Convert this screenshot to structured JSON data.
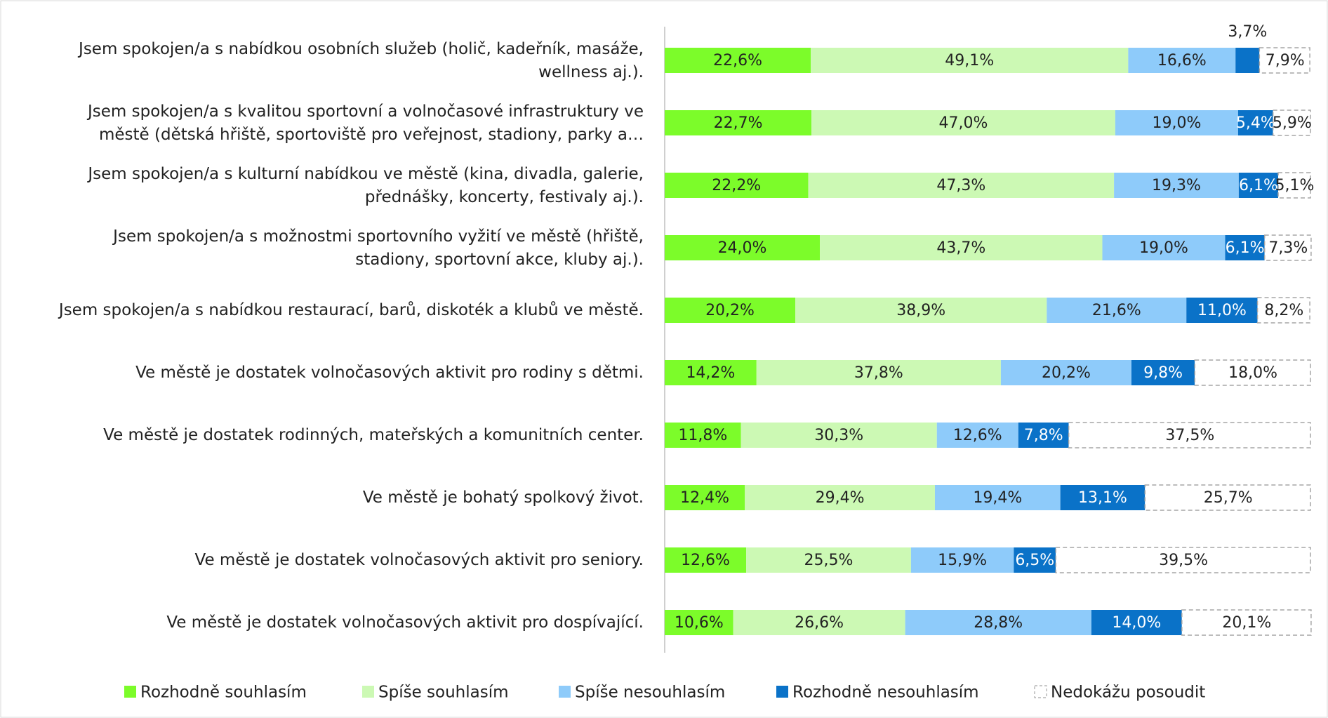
{
  "chart_data": {
    "type": "stacked_barh",
    "categories": [
      "Jsem spokojen/a s nabídkou osobních služeb (holič, kadeřník, masáže,\nwellness aj.).",
      "Jsem spokojen/a s kvalitou sportovní a volnočasové infrastruktury ve\nměstě (dětská hřiště, sportoviště pro veřejnost, stadiony, parky a…",
      "Jsem spokojen/a s kulturní nabídkou ve městě (kina, divadla, galerie,\npřednášky, koncerty, festivaly aj.).",
      "Jsem spokojen/a s možnostmi sportovního vyžití ve městě (hřiště,\nstadiony, sportovní akce, kluby aj.).",
      "Jsem spokojen/a s nabídkou restaurací, barů, diskoték a klubů ve městě.",
      "Ve městě je dostatek volnočasových aktivit pro rodiny s dětmi.",
      "Ve městě je dostatek rodinných, mateřských a komunitních center.",
      "Ve městě je bohatý spolkový život.",
      "Ve městě je dostatek volnočasových aktivit pro seniory.",
      "Ve městě je dostatek volnočasových aktivit pro dospívající."
    ],
    "xlim": [
      0,
      100
    ],
    "legend": "bottom",
    "series": [
      {
        "name": "Rozhodně souhlasím",
        "color": "#7cfc2a",
        "label_color": "#222222",
        "values": [
          22.6,
          22.7,
          22.2,
          24.0,
          20.2,
          14.2,
          11.8,
          12.4,
          12.6,
          10.6
        ],
        "value_labels": [
          "22,6%",
          "22,7%",
          "22,2%",
          "24,0%",
          "20,2%",
          "14,2%",
          "11,8%",
          "12,4%",
          "12,6%",
          "10,6%"
        ]
      },
      {
        "name": "Spíše souhlasím",
        "color": "#ccf9b4",
        "label_color": "#222222",
        "values": [
          49.1,
          47.0,
          47.3,
          43.7,
          38.9,
          37.8,
          30.3,
          29.4,
          25.5,
          26.6
        ],
        "value_labels": [
          "49,1%",
          "47,0%",
          "47,3%",
          "43,7%",
          "38,9%",
          "37,8%",
          "30,3%",
          "29,4%",
          "25,5%",
          "26,6%"
        ]
      },
      {
        "name": "Spíše nesouhlasím",
        "color": "#8ecbfa",
        "label_color": "#222222",
        "values": [
          16.6,
          19.0,
          19.3,
          19.0,
          21.6,
          20.2,
          12.6,
          19.4,
          15.9,
          28.8
        ],
        "value_labels": [
          "16,6%",
          "19,0%",
          "19,3%",
          "19,0%",
          "21,6%",
          "20,2%",
          "12,6%",
          "19,4%",
          "15,9%",
          "28,8%"
        ]
      },
      {
        "name": "Rozhodně nesouhlasím",
        "color": "#0a72c8",
        "label_color": "#ffffff",
        "values": [
          3.7,
          5.4,
          6.1,
          6.1,
          11.0,
          9.8,
          7.8,
          13.1,
          6.5,
          14.0
        ],
        "value_labels": [
          "3,7%",
          "5,4%",
          "6,1%",
          "6,1%",
          "11,0%",
          "9,8%",
          "7,8%",
          "13,1%",
          "6,5%",
          "14,0%"
        ]
      },
      {
        "name": "Nedokážu posoudit",
        "color": "#ffffff",
        "outline": "#a6a6a6",
        "label_color": "#222222",
        "values": [
          7.9,
          5.9,
          5.1,
          7.3,
          8.2,
          18.0,
          37.5,
          25.7,
          39.5,
          20.1
        ],
        "value_labels": [
          "7,9%",
          "5,9%",
          "5,1%",
          "7,3%",
          "8,2%",
          "18,0%",
          "37,5%",
          "25,7%",
          "39,5%",
          "20,1%"
        ]
      }
    ]
  }
}
